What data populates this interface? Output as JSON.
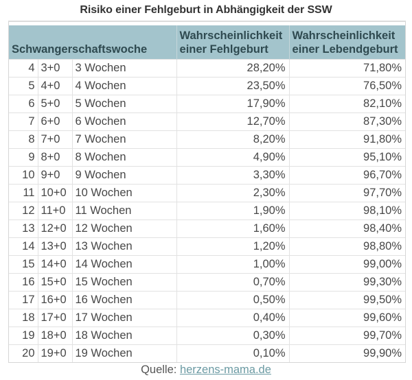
{
  "title": "Risiko einer Fehlgeburt in Abhängigkeit der SSW",
  "table": {
    "headers": {
      "week": "Schwangerschaftswoche",
      "miscarriage": [
        "Wahrscheinlichkeit",
        "einer Fehlgeburt"
      ],
      "livebirth": [
        "Wahrscheinlichkeit",
        "einer Lebendgeburt"
      ]
    },
    "rows": [
      {
        "ssw": "4",
        "stage": "3+0",
        "weeks": "3 Wochen",
        "miscarriage": "28,20%",
        "livebirth": "71,80%"
      },
      {
        "ssw": "5",
        "stage": "4+0",
        "weeks": "4 Wochen",
        "miscarriage": "23,50%",
        "livebirth": "76,50%"
      },
      {
        "ssw": "6",
        "stage": "5+0",
        "weeks": "5 Wochen",
        "miscarriage": "17,90%",
        "livebirth": "82,10%"
      },
      {
        "ssw": "7",
        "stage": "6+0",
        "weeks": "6 Wochen",
        "miscarriage": "12,70%",
        "livebirth": "87,30%"
      },
      {
        "ssw": "8",
        "stage": "7+0",
        "weeks": "7 Wochen",
        "miscarriage": "8,20%",
        "livebirth": "91,80%"
      },
      {
        "ssw": "9",
        "stage": "8+0",
        "weeks": "8 Wochen",
        "miscarriage": "4,90%",
        "livebirth": "95,10%"
      },
      {
        "ssw": "10",
        "stage": "9+0",
        "weeks": "9 Wochen",
        "miscarriage": "3,30%",
        "livebirth": "96,70%"
      },
      {
        "ssw": "11",
        "stage": "10+0",
        "weeks": "10 Wochen",
        "miscarriage": "2,30%",
        "livebirth": "97,70%"
      },
      {
        "ssw": "12",
        "stage": "11+0",
        "weeks": "11 Wochen",
        "miscarriage": "1,90%",
        "livebirth": "98,10%"
      },
      {
        "ssw": "13",
        "stage": "12+0",
        "weeks": "12 Wochen",
        "miscarriage": "1,60%",
        "livebirth": "98,40%"
      },
      {
        "ssw": "14",
        "stage": "13+0",
        "weeks": "13 Wochen",
        "miscarriage": "1,20%",
        "livebirth": "98,80%"
      },
      {
        "ssw": "15",
        "stage": "14+0",
        "weeks": "14 Wochen",
        "miscarriage": "1,00%",
        "livebirth": "99,00%"
      },
      {
        "ssw": "16",
        "stage": "15+0",
        "weeks": "15 Wochen",
        "miscarriage": "0,70%",
        "livebirth": "99,30%"
      },
      {
        "ssw": "17",
        "stage": "16+0",
        "weeks": "16 Wochen",
        "miscarriage": "0,50%",
        "livebirth": "99,50%"
      },
      {
        "ssw": "18",
        "stage": "17+0",
        "weeks": "17 Wochen",
        "miscarriage": "0,40%",
        "livebirth": "99,60%"
      },
      {
        "ssw": "19",
        "stage": "18+0",
        "weeks": "18 Wochen",
        "miscarriage": "0,30%",
        "livebirth": "99,70%"
      },
      {
        "ssw": "20",
        "stage": "19+0",
        "weeks": "19 Wochen",
        "miscarriage": "0,10%",
        "livebirth": "99,90%"
      }
    ]
  },
  "source": {
    "label": "Quelle: ",
    "link_text": "herzens-mama.de"
  },
  "colors": {
    "header_bg": "#a3c4cc",
    "header_text": "#2f4a50",
    "link": "#6b9aa3"
  }
}
